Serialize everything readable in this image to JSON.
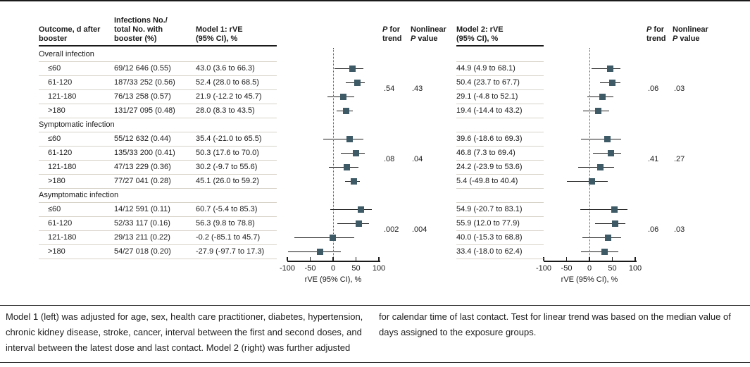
{
  "headers": {
    "outcome": "Outcome, d after\nbooster",
    "infections": "Infections No./\ntotal No. with\nbooster (%)",
    "model1": "Model 1: rVE\n(95% CI), %",
    "model2": "Model 2: rVE\n(95% CI), %",
    "p_italic": "P",
    "p_for_trend_rest": " for\ntrend",
    "nonlinear_first": "Nonlinear\n",
    "p_value_rest": " value"
  },
  "chart_data": {
    "type": "forest",
    "xlim": [
      -100,
      100
    ],
    "x_ticks": [
      -100,
      -50,
      0,
      50,
      100
    ],
    "xlabel": "rVE (95% CI), %",
    "grid": "zero-reference-dotted-line-only",
    "marker_color": "#3d5a66",
    "sections": [
      {
        "label": "Overall infection",
        "model1_p_trend": ".54",
        "model1_nonlinear_p": ".43",
        "model2_p_trend": ".06",
        "model2_nonlinear_p": ".03",
        "rows": [
          {
            "outcome": "≤60",
            "infections": "69/12 646 (0.55)",
            "model1": {
              "text": "43.0 (3.6 to 66.3)",
              "est": 43.0,
              "lo": 3.6,
              "hi": 66.3
            },
            "model2": {
              "text": "44.9 (4.9 to 68.1)",
              "est": 44.9,
              "lo": 4.9,
              "hi": 68.1
            }
          },
          {
            "outcome": "61-120",
            "infections": "187/33 252 (0.56)",
            "model1": {
              "text": "52.4 (28.0 to 68.5)",
              "est": 52.4,
              "lo": 28.0,
              "hi": 68.5
            },
            "model2": {
              "text": "50.4 (23.7 to 67.7)",
              "est": 50.4,
              "lo": 23.7,
              "hi": 67.7
            }
          },
          {
            "outcome": "121-180",
            "infections": "76/13 258 (0.57)",
            "model1": {
              "text": "21.9 (-12.2 to 45.7)",
              "est": 21.9,
              "lo": -12.2,
              "hi": 45.7
            },
            "model2": {
              "text": "29.1 (-4.8 to 52.1)",
              "est": 29.1,
              "lo": -4.8,
              "hi": 52.1
            }
          },
          {
            "outcome": ">180",
            "infections": "131/27 095 (0.48)",
            "model1": {
              "text": "28.0 (8.3 to 43.5)",
              "est": 28.0,
              "lo": 8.3,
              "hi": 43.5
            },
            "model2": {
              "text": "19.4 (-14.4 to 43.2)",
              "est": 19.4,
              "lo": -14.4,
              "hi": 43.2
            }
          }
        ]
      },
      {
        "label": "Symptomatic infection",
        "model1_p_trend": ".08",
        "model1_nonlinear_p": ".04",
        "model2_p_trend": ".41",
        "model2_nonlinear_p": ".27",
        "rows": [
          {
            "outcome": "≤60",
            "infections": "55/12 632 (0.44)",
            "model1": {
              "text": "35.4 (-21.0 to 65.5)",
              "est": 35.4,
              "lo": -21.0,
              "hi": 65.5
            },
            "model2": {
              "text": "39.6 (-18.6 to 69.3)",
              "est": 39.6,
              "lo": -18.6,
              "hi": 69.3
            }
          },
          {
            "outcome": "61-120",
            "infections": "135/33 200 (0.41)",
            "model1": {
              "text": "50.3 (17.6 to 70.0)",
              "est": 50.3,
              "lo": 17.6,
              "hi": 70.0
            },
            "model2": {
              "text": "46.8 (7.3 to 69.4)",
              "est": 46.8,
              "lo": 7.3,
              "hi": 69.4
            }
          },
          {
            "outcome": "121-180",
            "infections": "47/13 229 (0.36)",
            "model1": {
              "text": "30.2 (-9.7 to 55.6)",
              "est": 30.2,
              "lo": -9.7,
              "hi": 55.6
            },
            "model2": {
              "text": "24.2 (-23.9 to 53.6)",
              "est": 24.2,
              "lo": -23.9,
              "hi": 53.6
            }
          },
          {
            "outcome": ">180",
            "infections": "77/27 041 (0.28)",
            "model1": {
              "text": "45.1 (26.0 to 59.2)",
              "est": 45.1,
              "lo": 26.0,
              "hi": 59.2
            },
            "model2": {
              "text": "5.4 (-49.8 to 40.4)",
              "est": 5.4,
              "lo": -49.8,
              "hi": 40.4
            }
          }
        ]
      },
      {
        "label": "Asymptomatic infection",
        "model1_p_trend": ".002",
        "model1_nonlinear_p": ".004",
        "model2_p_trend": ".06",
        "model2_nonlinear_p": ".03",
        "rows": [
          {
            "outcome": "≤60",
            "infections": "14/12 591 (0.11)",
            "model1": {
              "text": "60.7 (-5.4 to 85.3)",
              "est": 60.7,
              "lo": -5.4,
              "hi": 85.3
            },
            "model2": {
              "text": "54.9 (-20.7 to 83.1)",
              "est": 54.9,
              "lo": -20.7,
              "hi": 83.1
            }
          },
          {
            "outcome": "61-120",
            "infections": "52/33 117 (0.16)",
            "model1": {
              "text": "56.3 (9.8 to 78.8)",
              "est": 56.3,
              "lo": 9.8,
              "hi": 78.8
            },
            "model2": {
              "text": "55.9 (12.0 to 77.9)",
              "est": 55.9,
              "lo": 12.0,
              "hi": 77.9
            }
          },
          {
            "outcome": "121-180",
            "infections": "29/13 211 (0.22)",
            "model1": {
              "text": "-0.2 (-85.1 to 45.7)",
              "est": -0.2,
              "lo": -85.1,
              "hi": 45.7
            },
            "model2": {
              "text": "40.0 (-15.3 to 68.8)",
              "est": 40.0,
              "lo": -15.3,
              "hi": 68.8
            }
          },
          {
            "outcome": ">180",
            "infections": "54/27 018 (0.20)",
            "model1": {
              "text": "-27.9 (-97.7 to 17.3)",
              "est": -27.9,
              "lo": -97.7,
              "hi": 17.3
            },
            "model2": {
              "text": "33.4 (-18.0 to 62.4)",
              "est": 33.4,
              "lo": -18.0,
              "hi": 62.4
            }
          }
        ]
      }
    ]
  },
  "footnotes": {
    "left": "Model 1 (left) was adjusted for age, sex, health care practitioner, diabetes, hypertension, chronic kidney disease, stroke, cancer, interval between the first and second doses, and interval between the latest dose and last contact. Model 2 (right) was further adjusted",
    "right": "for calendar time of last contact. Test for linear trend was based on the median value of days assigned to the exposure groups."
  }
}
